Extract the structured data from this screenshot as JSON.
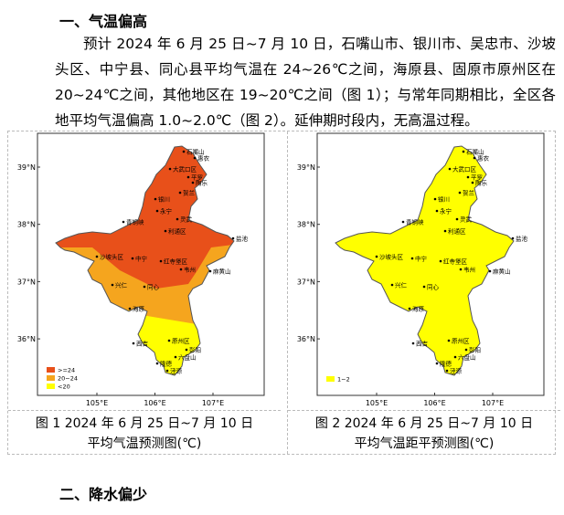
{
  "section1": {
    "heading": "一、气温偏高",
    "paragraph": "预计 2024 年 6 月 25 日~7 月 10 日，石嘴山市、银川市、吴忠市、沙坡头区、中宁县、同心县平均气温在 24~26℃之间，海原县、固原市原州区在 20~24℃之间，其他地区在 19~20℃之间（图 1）；与常年同期相比，全区各地平均气温偏高 1.0~2.0℃（图 2）。延伸期时段内，无高温过程。"
  },
  "map_labels": {
    "lat": [
      "39°N",
      "38°N",
      "37°N",
      "36°N"
    ],
    "lon": [
      "105°E",
      "106°E",
      "107°E"
    ],
    "cities": [
      "石嘴山",
      "惠农",
      "大武口区",
      "平罗",
      "陶乐",
      "贺兰",
      "银川",
      "永宁",
      "灵武",
      "青铜峡",
      "利通区",
      "盐池",
      "沙坡头区",
      "中宁",
      "红寺堡区",
      "韦州",
      "麻黄山",
      "兴仁",
      "同心",
      "海原",
      "西吉",
      "原州区",
      "彭阳",
      "六盘山",
      "隆德",
      "泾源"
    ]
  },
  "figures": [
    {
      "legend": [
        ">=24",
        "20~24",
        "<20"
      ],
      "caption": [
        "图 1 2024 年 6 月 25 日~7 月 10 日",
        "平均气温预测图(℃)"
      ]
    },
    {
      "legend": [
        "1~2"
      ],
      "caption": [
        "图 2 2024 年 6 月 25 日~7 月 10 日",
        "平均气温距平预测图(℃)"
      ]
    }
  ],
  "section2": {
    "heading": "二、降水偏少"
  }
}
